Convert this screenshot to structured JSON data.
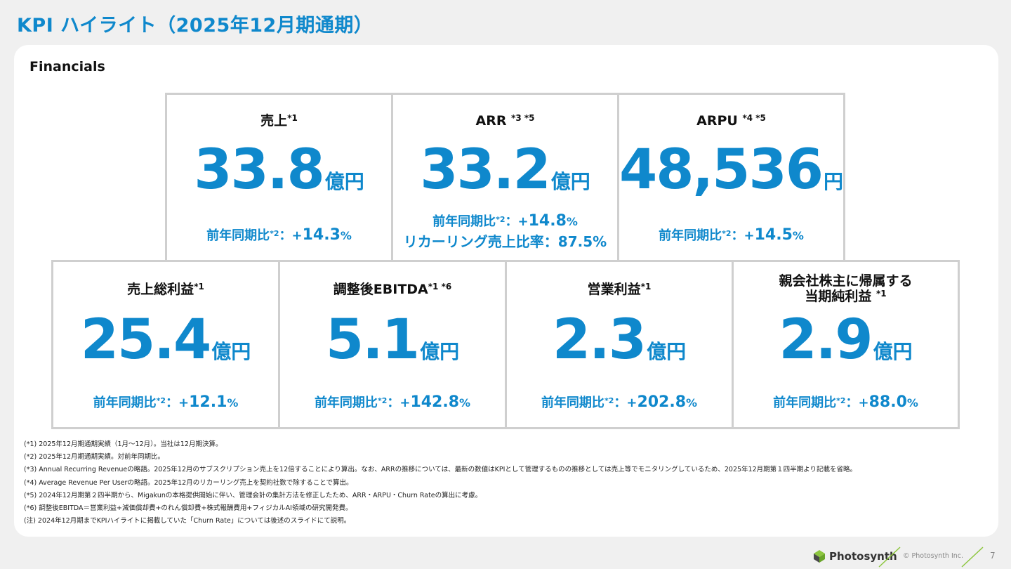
{
  "header": {
    "title": "KPI ハイライト（2025年12月期通期）"
  },
  "section": {
    "title": "Financials"
  },
  "cards": [
    {
      "label": "売上",
      "note": "*1",
      "value": "33.8",
      "unit": "億円",
      "yoy_label": "前年同期比",
      "yoy_note": "*2",
      "yoy_sep": "：+",
      "yoy_value": "14.3",
      "yoy_pct": "%"
    },
    {
      "label": "ARR ",
      "note": "*3 *5",
      "value": "33.2",
      "unit": "億円",
      "yoy_label": "前年同期比",
      "yoy_note": "*2",
      "yoy_sep": "：+",
      "yoy_value": "14.8",
      "yoy_pct": "%",
      "extra": "リカーリング売上比率：87.5%"
    },
    {
      "label": "ARPU ",
      "note": "*4 *5",
      "value": "48,536",
      "unit": "円",
      "yoy_label": "前年同期比",
      "yoy_note": "*2",
      "yoy_sep": "：+",
      "yoy_value": "14.5",
      "yoy_pct": "%"
    },
    {
      "label": "売上総利益",
      "note": "*1",
      "value": "25.4",
      "unit": "億円",
      "yoy_label": "前年同期比",
      "yoy_note": "*2",
      "yoy_sep": "：+",
      "yoy_value": "12.1",
      "yoy_pct": "%"
    },
    {
      "label": "調整後EBITDA",
      "note": "*1 *6",
      "value": "5.1",
      "unit": "億円",
      "yoy_label": "前年同期比",
      "yoy_note": "*2",
      "yoy_sep": "：+",
      "yoy_value": "142.8",
      "yoy_pct": "%"
    },
    {
      "label": "営業利益",
      "note": "*1",
      "value": "2.3",
      "unit": "億円",
      "yoy_label": "前年同期比",
      "yoy_note": "*2",
      "yoy_sep": "：+",
      "yoy_value": "202.8",
      "yoy_pct": "%"
    },
    {
      "label_line1": "親会社株主に帰属する",
      "label": "当期純利益 ",
      "note": "*1",
      "value": "2.9",
      "unit": "億円",
      "yoy_label": "前年同期比",
      "yoy_note": "*2",
      "yoy_sep": "：+",
      "yoy_value": "88.0",
      "yoy_pct": "%"
    }
  ],
  "footnotes": [
    "(*1) 2025年12月期通期実績（1月～12月）。当社は12月期決算。",
    "(*2) 2025年12月期通期実績。対前年同期比。",
    "(*3) Annual Recurring Revenueの略語。2025年12月のサブスクリプション売上を12倍することにより算出。なお、ARRの推移については、最新の数値はKPIとして管理するものの推移としては売上等でモニタリングしているため、2025年12月期第１四半期より記載を省略。",
    "(*4) Average Revenue Per Userの略語。2025年12月のリカーリング売上を契約社数で除することで算出。",
    "(*5) 2024年12月期第２四半期から、Migakunの本格提供開始に伴い、管理会計の集計方法を修正したため、ARR・ARPU・Churn Rateの算出に考慮。",
    "(*6) 調整後EBITDA＝営業利益+減価償却費+のれん償却費+株式報酬費用+フィジカルAI領域の研究開発費。",
    "(注) 2024年12月期までKPIハイライトに掲載していた「Churn Rate」については後述のスライドにて説明。"
  ],
  "footer": {
    "logo_text": "Photosynth",
    "copyright": "© Photosynth Inc.",
    "page_number": "7"
  },
  "colors": {
    "accent": "#0f88cc",
    "border": "#cfcfcf",
    "background": "#f0f0f0",
    "logo_green": "#8dc63f"
  }
}
